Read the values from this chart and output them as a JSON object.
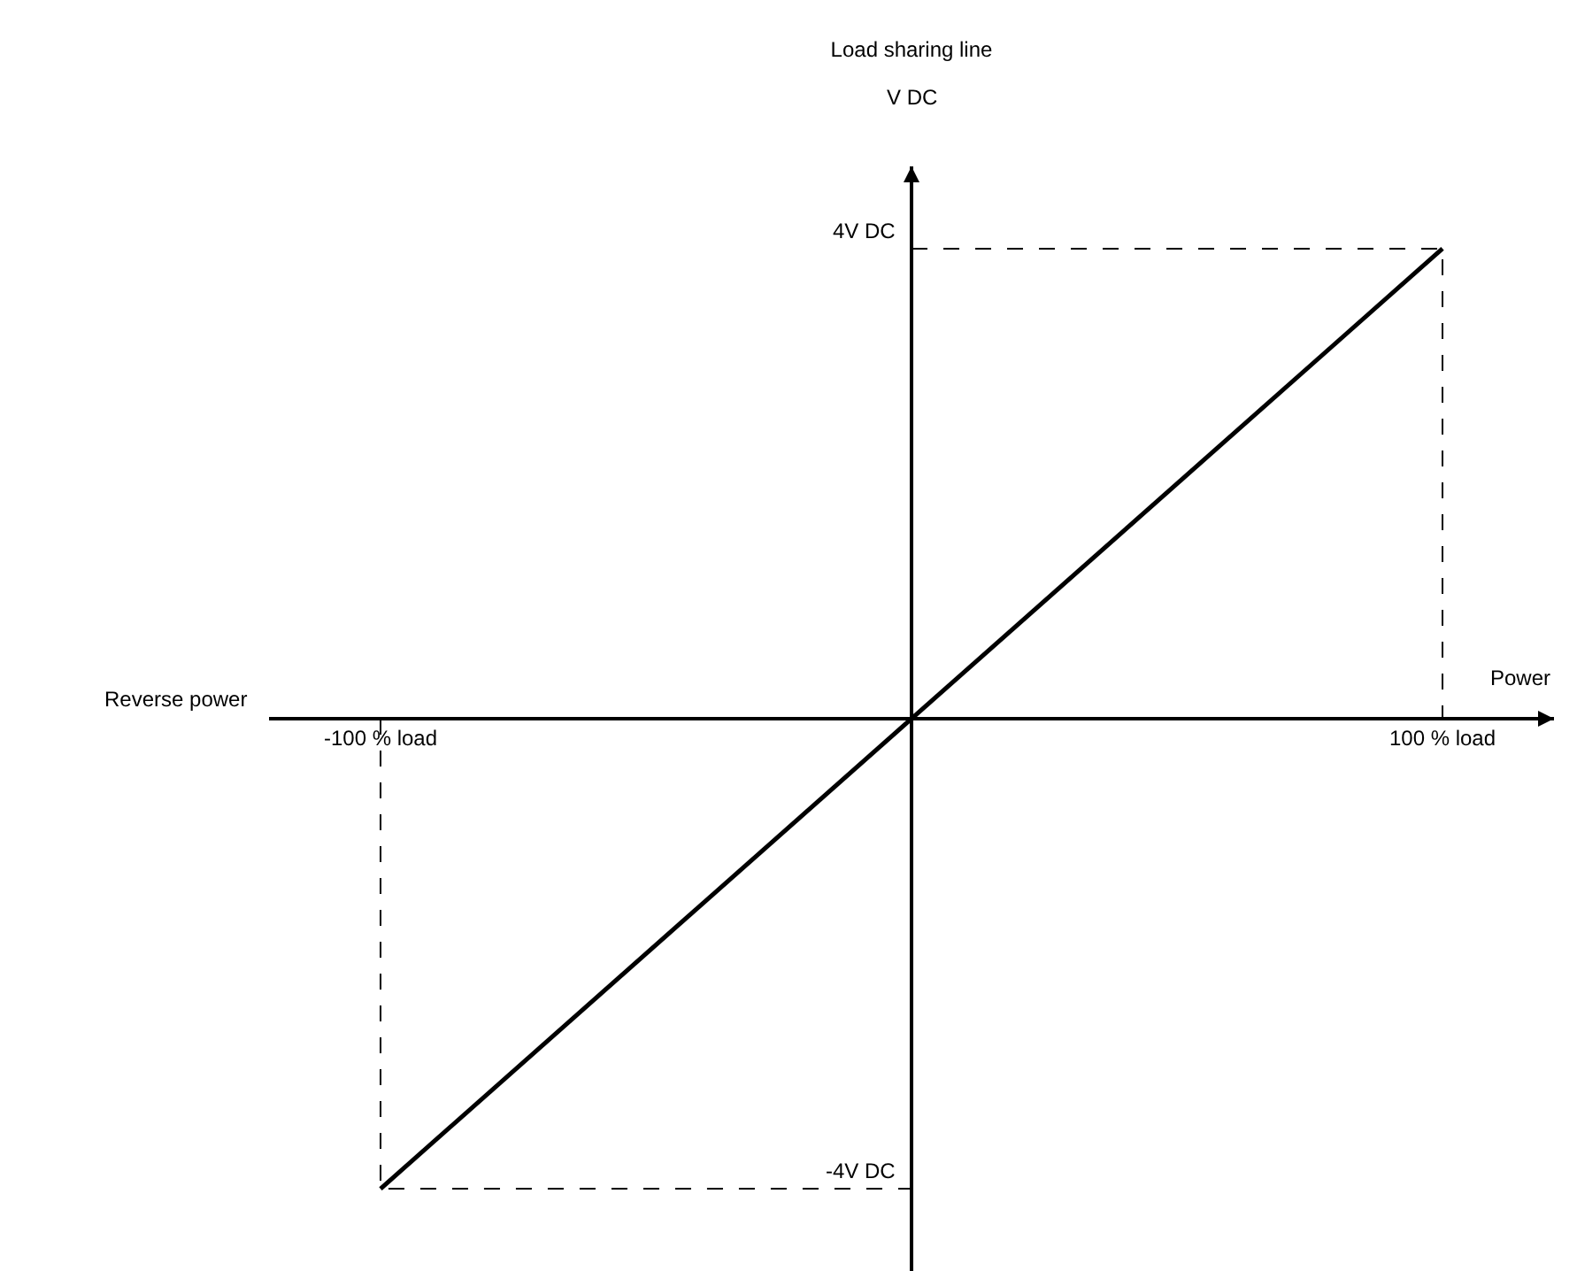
{
  "chart_data": {
    "type": "line",
    "title": "Load sharing line",
    "xlabel": "Power",
    "ylabel": "V DC",
    "annotations": [
      "Reverse power"
    ],
    "xlim": [
      -121,
      121
    ],
    "ylim": [
      -4.7,
      4.7
    ],
    "xticks": [
      {
        "value": -100,
        "label": "-100 % load"
      },
      {
        "value": 100,
        "label": "100 % load"
      }
    ],
    "yticks": [
      {
        "value": -4,
        "label": "-4V DC"
      },
      {
        "value": 4,
        "label": "4V DC"
      }
    ],
    "series": [
      {
        "x": [
          -100,
          100
        ],
        "values": [
          -4,
          4
        ],
        "color": "#000000",
        "line_style": "solid"
      },
      {
        "x": [
          0,
          100,
          100
        ],
        "values": [
          4,
          4,
          0
        ],
        "color": "#000000",
        "line_style": "dashed"
      },
      {
        "x": [
          -100,
          -100,
          0
        ],
        "values": [
          0,
          -4,
          -4
        ],
        "color": "#000000",
        "line_style": "dashed"
      }
    ]
  }
}
